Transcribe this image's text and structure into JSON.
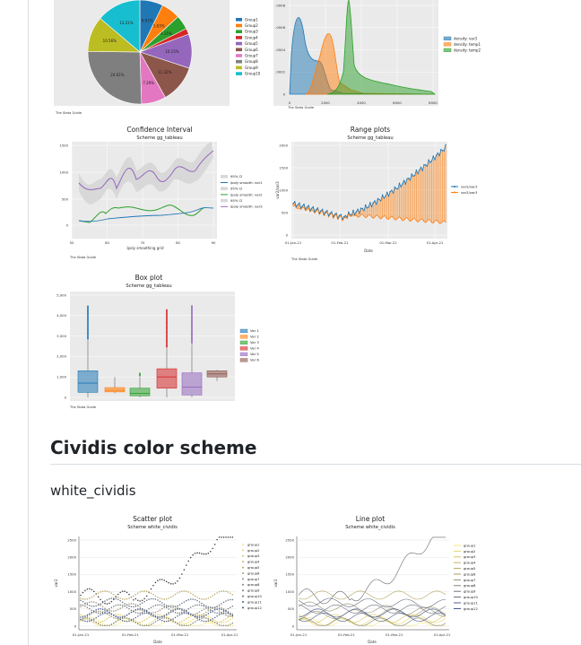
{
  "colors": {
    "tab1": "#1f77b4",
    "tab2": "#ff7f0e",
    "tab3": "#2ca02c",
    "tab4": "#d62728",
    "tab5": "#9467bd",
    "tab6": "#8c564b",
    "tab7": "#e377c2",
    "tab8": "#7f7f7f",
    "tab9": "#bcbd22",
    "tab10": "#17becf",
    "plotbg": "#eaeaea"
  },
  "section": {
    "heading": "Cividis color scheme",
    "subheading": "white_cividis"
  },
  "chart_data": [
    {
      "type": "pie",
      "title": "",
      "legend": [
        "Group1",
        "Group2",
        "Group3",
        "Group4",
        "Group5",
        "Group6",
        "Group7",
        "Group8",
        "Group9",
        "Group10"
      ],
      "values": [
        6.91,
        5.65,
        4.25,
        1.8,
        10.15,
        11.32,
        7.29,
        24.61,
        10.56,
        13.21
      ],
      "labels": [
        "6.91%",
        "5.65%",
        "4.25%",
        "",
        "10.15%",
        "11.32%",
        "7.29%",
        "24.61%",
        "10.56%",
        "13.21%"
      ],
      "note": "The Stata Guide"
    },
    {
      "type": "area",
      "title": "",
      "series": [
        "density: var3",
        "density: temp1",
        "density: temp2"
      ],
      "xticks": [
        "0",
        "2000",
        "4000",
        "6000",
        "8000"
      ],
      "yticks": [
        "0",
        ".0002",
        ".0004",
        ".0006",
        ".0008"
      ],
      "note": "The Stata Guide"
    },
    {
      "type": "line",
      "title": "Confidence Interval",
      "subtitle": "Scheme gg_tableau",
      "xlabel": "lpoly smoothing grid",
      "xticks": [
        "50",
        "60",
        "70",
        "80",
        "90"
      ],
      "yticks": [
        "0",
        "500",
        "1000",
        "1500"
      ],
      "legend": [
        "95% CI",
        "lpoly smooth: var1",
        "95% CI",
        "lpoly smooth: var2",
        "95% CI",
        "lpoly smooth: var3"
      ],
      "note": "The Stata Guide"
    },
    {
      "type": "bar",
      "title": "Range plots",
      "subtitle": "Scheme gg_tableau",
      "xlabel": "Date",
      "ylabel": "var2/var3",
      "xticks": [
        "01-Jan-21",
        "01-Feb-21",
        "01-Mar-21",
        "01-Apr-21"
      ],
      "yticks": [
        "0",
        "500",
        "1000",
        "1500",
        "2000"
      ],
      "legend": [
        "var2/var3",
        "var2/var3"
      ],
      "note": "The Stata Guide"
    },
    {
      "type": "box",
      "title": "Box plot",
      "subtitle": "Scheme gg_tableau",
      "yticks": [
        "0",
        "1,000",
        "2,000",
        "3,000",
        "4,000",
        "5,000"
      ],
      "legend": [
        "Var 1",
        "Var 2",
        "Var 3",
        "Var 4",
        "Var 5",
        "Var 6"
      ],
      "note": "The Stata Guide",
      "boxes": [
        {
          "lw": 0,
          "q1": 250,
          "med": 700,
          "q3": 1300,
          "uw": 2800,
          "out": 4500
        },
        {
          "lw": 200,
          "q1": 270,
          "med": 350,
          "q3": 480,
          "uw": 1000,
          "out": 1000
        },
        {
          "lw": 0,
          "q1": 80,
          "med": 200,
          "q3": 450,
          "uw": 1000,
          "out": 1200
        },
        {
          "lw": 0,
          "q1": 450,
          "med": 1000,
          "q3": 1400,
          "uw": 2400,
          "out": 4300
        },
        {
          "lw": 0,
          "q1": 120,
          "med": 500,
          "q3": 1200,
          "uw": 2600,
          "out": 4500
        },
        {
          "lw": 800,
          "q1": 1000,
          "med": 1150,
          "q3": 1300,
          "uw": 1350,
          "out": null
        }
      ]
    },
    {
      "type": "scatter",
      "title": "Scatter plot",
      "subtitle": "Scheme white_cividis",
      "xlabel": "Date",
      "ylabel": "var2",
      "xticks": [
        "01-Jan-21",
        "01-Feb-21",
        "01-Mar-21",
        "01-Apr-21"
      ],
      "yticks": [
        "0",
        "500",
        "1000",
        "1500",
        "2000",
        "2500"
      ],
      "legend": [
        "group1",
        "group2",
        "group3",
        "group4",
        "group5",
        "group6",
        "group7",
        "group8",
        "group9",
        "group10",
        "group11",
        "group12"
      ]
    },
    {
      "type": "line",
      "title": "Line plot",
      "subtitle": "Scheme white_cividis",
      "xlabel": "Date",
      "ylabel": "var2",
      "xticks": [
        "01-Jan-21",
        "01-Feb-21",
        "01-Mar-21",
        "01-Apr-21"
      ],
      "yticks": [
        "0",
        "500",
        "1000",
        "1500",
        "2000",
        "2500"
      ],
      "legend": [
        "group1",
        "group2",
        "group3",
        "group4",
        "group5",
        "group6",
        "group7",
        "group8",
        "group9",
        "group10",
        "group11",
        "group12"
      ]
    }
  ]
}
